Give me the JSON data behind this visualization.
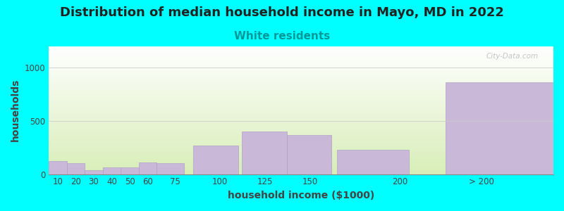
{
  "title": "Distribution of median household income in Mayo, MD in 2022",
  "subtitle": "White residents",
  "xlabel": "household income ($1000)",
  "ylabel": "households",
  "background_color": "#00FFFF",
  "bar_color": "#C9B8D8",
  "bar_edge_color": "#B0A0C8",
  "categories": [
    "10",
    "20",
    "30",
    "40",
    "50",
    "60",
    "75",
    "100",
    "125",
    "150",
    "200",
    "> 200"
  ],
  "left_edges": [
    5,
    15,
    25,
    35,
    45,
    55,
    65,
    85,
    112,
    137,
    165,
    225
  ],
  "widths": [
    10,
    10,
    10,
    10,
    10,
    10,
    15,
    25,
    25,
    25,
    40,
    60
  ],
  "values": [
    120,
    105,
    35,
    65,
    65,
    110,
    100,
    270,
    400,
    370,
    230,
    860
  ],
  "xtick_positions": [
    10,
    20,
    30,
    40,
    50,
    60,
    75,
    100,
    125,
    150,
    200,
    245
  ],
  "xtick_labels": [
    "10",
    "20",
    "30",
    "40",
    "50",
    "60",
    "75",
    "100",
    "125",
    "150",
    "200",
    "> 200"
  ],
  "ylim": [
    0,
    1200
  ],
  "yticks": [
    0,
    500,
    1000
  ],
  "xlim": [
    5,
    285
  ],
  "title_fontsize": 13,
  "subtitle_fontsize": 11,
  "axis_label_fontsize": 10,
  "title_color": "#222222",
  "subtitle_color": "#009999",
  "tick_color": "#444444",
  "watermark": "City-Data.com",
  "grad_top_color": "#FFFFFF",
  "grad_bottom_color": "#D8EEB8"
}
